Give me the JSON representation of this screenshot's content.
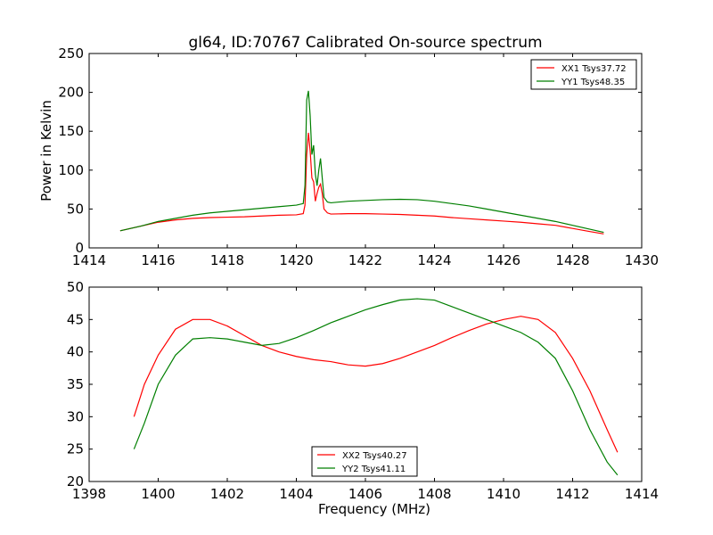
{
  "figure": {
    "title": "gl64, ID:70767 Calibrated On-source spectrum",
    "background": "#ffffff"
  },
  "colors": {
    "series_red": "#ff0000",
    "series_green": "#007f00",
    "axes": "#000000"
  },
  "chart_data": [
    {
      "type": "line",
      "title": "gl64, ID:70767 Calibrated On-source spectrum",
      "xlabel": "",
      "ylabel": "Power in Kelvin",
      "xlim": [
        1414,
        1430
      ],
      "ylim": [
        0,
        250
      ],
      "xticks": [
        "1414",
        "1416",
        "1418",
        "1420",
        "1422",
        "1424",
        "1426",
        "1428",
        "1430"
      ],
      "yticks": [
        "0",
        "50",
        "100",
        "150",
        "200",
        "250"
      ],
      "xtick_values": [
        1414,
        1416,
        1418,
        1420,
        1422,
        1424,
        1426,
        1428,
        1430
      ],
      "ytick_values": [
        0,
        50,
        100,
        150,
        200,
        250
      ],
      "grid": false,
      "legend_position": "top-right",
      "series": [
        {
          "name": "XX1 Tsys37.72",
          "color": "#ff0000",
          "x": [
            1414.9,
            1415.5,
            1416,
            1416.5,
            1417,
            1417.5,
            1418,
            1418.5,
            1419,
            1419.5,
            1420,
            1420.2,
            1420.25,
            1420.3,
            1420.35,
            1420.4,
            1420.45,
            1420.5,
            1420.55,
            1420.6,
            1420.65,
            1420.7,
            1420.75,
            1420.8,
            1420.9,
            1421,
            1421.5,
            1422,
            1422.5,
            1423,
            1423.5,
            1424,
            1424.5,
            1425,
            1425.5,
            1426,
            1426.5,
            1427,
            1427.5,
            1428,
            1428.5,
            1428.9
          ],
          "y": [
            22,
            28,
            33,
            36,
            38,
            39,
            39.5,
            40,
            41,
            42,
            42.5,
            44,
            55,
            120,
            148,
            125,
            90,
            85,
            60,
            70,
            78,
            82,
            70,
            50,
            45,
            43.5,
            44,
            44,
            43.5,
            43,
            42,
            41,
            39,
            37.5,
            36,
            34.5,
            33,
            31,
            29,
            25,
            21,
            18
          ]
        },
        {
          "name": "YY1 Tsys48.35",
          "color": "#007f00",
          "x": [
            1414.9,
            1415.5,
            1416,
            1416.5,
            1417,
            1417.5,
            1418,
            1418.5,
            1419,
            1419.5,
            1420,
            1420.2,
            1420.25,
            1420.3,
            1420.35,
            1420.4,
            1420.45,
            1420.5,
            1420.55,
            1420.6,
            1420.65,
            1420.7,
            1420.75,
            1420.8,
            1420.9,
            1421,
            1421.5,
            1422,
            1422.5,
            1423,
            1423.5,
            1424,
            1424.5,
            1425,
            1425.5,
            1426,
            1426.5,
            1427,
            1427.5,
            1428,
            1428.5,
            1428.9
          ],
          "y": [
            22,
            28,
            34,
            38,
            42,
            45,
            47,
            49,
            51,
            53,
            55,
            57,
            80,
            190,
            202,
            170,
            120,
            132,
            95,
            80,
            100,
            115,
            90,
            65,
            59,
            58,
            60,
            61,
            62,
            62.5,
            62,
            60,
            57,
            54,
            50,
            46,
            42,
            38,
            34,
            29,
            24,
            20
          ]
        }
      ]
    },
    {
      "type": "line",
      "title": "",
      "xlabel": "Frequency (MHz)",
      "ylabel": "",
      "xlim": [
        1398,
        1414
      ],
      "ylim": [
        20,
        50
      ],
      "xticks": [
        "1398",
        "1400",
        "1402",
        "1404",
        "1406",
        "1408",
        "1410",
        "1412",
        "1414"
      ],
      "yticks": [
        "20",
        "25",
        "30",
        "35",
        "40",
        "45",
        "50"
      ],
      "xtick_values": [
        1398,
        1400,
        1402,
        1404,
        1406,
        1408,
        1410,
        1412,
        1414
      ],
      "ytick_values": [
        20,
        25,
        30,
        35,
        40,
        45,
        50
      ],
      "grid": false,
      "legend_position": "bottom-center",
      "series": [
        {
          "name": "XX2 Tsys40.27",
          "color": "#ff0000",
          "x": [
            1399.3,
            1399.6,
            1400,
            1400.5,
            1401,
            1401.5,
            1402,
            1402.5,
            1403,
            1403.5,
            1404,
            1404.5,
            1405,
            1405.5,
            1406,
            1406.5,
            1407,
            1407.5,
            1408,
            1408.5,
            1409,
            1409.5,
            1410,
            1410.5,
            1411,
            1411.5,
            1412,
            1412.5,
            1413,
            1413.3
          ],
          "y": [
            30,
            35,
            39.5,
            43.5,
            45,
            45,
            44,
            42.5,
            41,
            40,
            39.3,
            38.8,
            38.5,
            38,
            37.8,
            38.2,
            39,
            40,
            41,
            42.2,
            43.3,
            44.3,
            45,
            45.5,
            45,
            43,
            39,
            34,
            28,
            24.5
          ]
        },
        {
          "name": "YY2 Tsys41.11",
          "color": "#007f00",
          "x": [
            1399.3,
            1399.6,
            1400,
            1400.5,
            1401,
            1401.5,
            1402,
            1402.5,
            1403,
            1403.5,
            1404,
            1404.5,
            1405,
            1405.5,
            1406,
            1406.5,
            1407,
            1407.5,
            1408,
            1408.5,
            1409,
            1409.5,
            1410,
            1410.5,
            1411,
            1411.5,
            1412,
            1412.5,
            1413,
            1413.3
          ],
          "y": [
            25,
            29,
            35,
            39.5,
            42,
            42.2,
            42,
            41.5,
            41,
            41.3,
            42.2,
            43.3,
            44.5,
            45.5,
            46.5,
            47.3,
            48,
            48.2,
            48,
            47,
            46,
            45,
            44,
            43,
            41.5,
            39,
            34,
            28,
            23,
            21
          ]
        }
      ]
    }
  ]
}
